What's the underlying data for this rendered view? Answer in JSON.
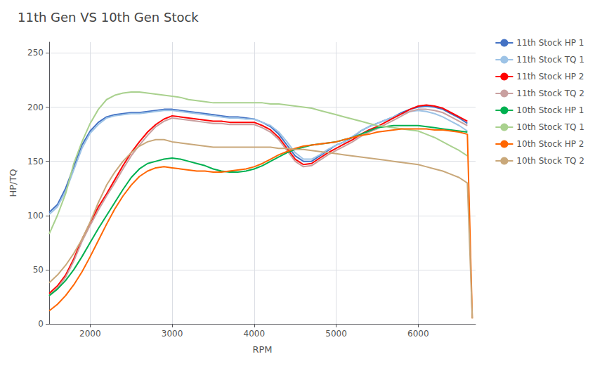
{
  "chart_data": {
    "type": "line",
    "title": "11th Gen VS 10th Gen Stock",
    "xlabel": "RPM",
    "ylabel": "HP/TQ",
    "xlim": [
      1500,
      6700
    ],
    "ylim": [
      0,
      260
    ],
    "xticks": [
      2000,
      3000,
      4000,
      5000,
      6000
    ],
    "yticks": [
      0,
      50,
      100,
      150,
      200,
      250
    ],
    "grid": true,
    "legend": "right",
    "series": [
      {
        "name": "11th Stock HP 1",
        "color": "#4472C4",
        "x": [
          1500,
          1600,
          1700,
          1800,
          1900,
          2000,
          2100,
          2200,
          2300,
          2400,
          2500,
          2600,
          2700,
          2800,
          2900,
          3000,
          3100,
          3200,
          3300,
          3400,
          3500,
          3600,
          3700,
          3800,
          3900,
          4000,
          4100,
          4200,
          4300,
          4400,
          4500,
          4600,
          4700,
          4800,
          4900,
          5000,
          5100,
          5200,
          5300,
          5400,
          5500,
          5600,
          5700,
          5800,
          5900,
          6000,
          6100,
          6200,
          6300,
          6400,
          6500,
          6600
        ],
        "values": [
          103,
          110,
          125,
          145,
          165,
          178,
          186,
          191,
          193,
          194,
          195,
          195,
          196,
          197,
          198,
          198,
          197,
          196,
          195,
          194,
          193,
          192,
          191,
          191,
          190,
          189,
          186,
          182,
          175,
          165,
          155,
          150,
          150,
          155,
          160,
          165,
          168,
          172,
          178,
          182,
          185,
          188,
          191,
          195,
          198,
          200,
          201,
          200,
          198,
          194,
          190,
          185
        ]
      },
      {
        "name": "11th Stock TQ 1",
        "color": "#9DC3E6",
        "x": [
          1500,
          1600,
          1700,
          1800,
          1900,
          2000,
          2100,
          2200,
          2300,
          2400,
          2500,
          2600,
          2700,
          2800,
          2900,
          3000,
          3100,
          3200,
          3300,
          3400,
          3500,
          3600,
          3700,
          3800,
          3900,
          4000,
          4100,
          4200,
          4300,
          4400,
          4500,
          4600,
          4700,
          4800,
          4900,
          5000,
          5100,
          5200,
          5300,
          5400,
          5500,
          5600,
          5700,
          5800,
          5900,
          6000,
          6100,
          6200,
          6300,
          6400,
          6500,
          6600
        ],
        "values": [
          101,
          108,
          122,
          142,
          162,
          176,
          184,
          190,
          192,
          193,
          194,
          194,
          195,
          196,
          197,
          197,
          196,
          195,
          194,
          193,
          192,
          191,
          190,
          190,
          189,
          189,
          186,
          183,
          177,
          168,
          158,
          152,
          152,
          156,
          161,
          165,
          168,
          173,
          178,
          182,
          185,
          188,
          191,
          194,
          196,
          197,
          196,
          194,
          191,
          187,
          183,
          178
        ]
      },
      {
        "name": "11th Stock HP 2",
        "color": "#FF0000",
        "x": [
          1500,
          1600,
          1700,
          1800,
          1900,
          2000,
          2100,
          2200,
          2300,
          2400,
          2500,
          2600,
          2700,
          2800,
          2900,
          3000,
          3100,
          3200,
          3300,
          3400,
          3500,
          3600,
          3700,
          3800,
          3900,
          4000,
          4100,
          4200,
          4300,
          4400,
          4500,
          4600,
          4700,
          4800,
          4900,
          5000,
          5100,
          5200,
          5300,
          5400,
          5500,
          5600,
          5700,
          5800,
          5900,
          6000,
          6100,
          6200,
          6300,
          6400,
          6500,
          6600
        ],
        "values": [
          28,
          35,
          45,
          60,
          78,
          93,
          108,
          120,
          133,
          146,
          158,
          168,
          177,
          184,
          189,
          192,
          191,
          190,
          189,
          188,
          187,
          187,
          186,
          186,
          186,
          186,
          183,
          179,
          172,
          162,
          152,
          147,
          148,
          153,
          158,
          162,
          166,
          170,
          175,
          179,
          182,
          186,
          190,
          194,
          198,
          201,
          202,
          201,
          199,
          195,
          191,
          187
        ]
      },
      {
        "name": "11th Stock TQ 2",
        "color": "#C9A0A0",
        "x": [
          1500,
          1600,
          1700,
          1800,
          1900,
          2000,
          2100,
          2200,
          2300,
          2400,
          2500,
          2600,
          2700,
          2800,
          2900,
          3000,
          3100,
          3200,
          3300,
          3400,
          3500,
          3600,
          3700,
          3800,
          3900,
          4000,
          4100,
          4200,
          4300,
          4400,
          4500,
          4600,
          4700,
          4800,
          4900,
          5000,
          5100,
          5200,
          5300,
          5400,
          5500,
          5600,
          5700,
          5800,
          5900,
          6000,
          6100,
          6200,
          6300,
          6400,
          6500,
          6600
        ],
        "values": [
          26,
          33,
          43,
          58,
          76,
          91,
          105,
          118,
          130,
          143,
          155,
          165,
          174,
          182,
          187,
          190,
          189,
          188,
          187,
          186,
          185,
          185,
          184,
          184,
          184,
          184,
          181,
          177,
          170,
          160,
          150,
          145,
          146,
          151,
          156,
          160,
          164,
          168,
          173,
          177,
          180,
          184,
          188,
          192,
          196,
          198,
          198,
          197,
          195,
          191,
          187,
          183
        ]
      },
      {
        "name": "10th Stock HP 1",
        "color": "#00B050",
        "x": [
          1500,
          1600,
          1700,
          1800,
          1900,
          2000,
          2100,
          2200,
          2300,
          2400,
          2500,
          2600,
          2700,
          2800,
          2900,
          3000,
          3100,
          3200,
          3300,
          3400,
          3500,
          3600,
          3700,
          3800,
          3900,
          4000,
          4100,
          4200,
          4300,
          4400,
          4500,
          4600,
          4700,
          4800,
          4900,
          5000,
          5100,
          5200,
          5300,
          5400,
          5500,
          5600,
          5700,
          5800,
          5900,
          6000,
          6100,
          6200,
          6300,
          6400,
          6500,
          6600
        ],
        "values": [
          26,
          32,
          40,
          50,
          62,
          75,
          88,
          100,
          112,
          124,
          135,
          143,
          148,
          150,
          152,
          153,
          152,
          150,
          148,
          146,
          143,
          141,
          140,
          140,
          141,
          143,
          146,
          150,
          154,
          158,
          161,
          163,
          165,
          166,
          167,
          168,
          170,
          172,
          175,
          178,
          181,
          182,
          183,
          183,
          183,
          183,
          182,
          181,
          180,
          179,
          178,
          177
        ]
      },
      {
        "name": "10th Stock TQ 1",
        "color": "#A9D18E",
        "x": [
          1500,
          1600,
          1700,
          1800,
          1900,
          2000,
          2100,
          2200,
          2300,
          2400,
          2500,
          2600,
          2700,
          2800,
          2900,
          3000,
          3100,
          3200,
          3300,
          3400,
          3500,
          3600,
          3700,
          3800,
          3900,
          4000,
          4100,
          4200,
          4300,
          4400,
          4500,
          4600,
          4700,
          4800,
          4900,
          5000,
          5100,
          5200,
          5300,
          5400,
          5500,
          5600,
          5700,
          5800,
          5900,
          6000,
          6100,
          6200,
          6300,
          6400,
          6500,
          6600
        ],
        "values": [
          83,
          100,
          120,
          148,
          168,
          185,
          198,
          207,
          211,
          213,
          214,
          214,
          213,
          212,
          211,
          210,
          209,
          207,
          206,
          205,
          204,
          204,
          204,
          204,
          204,
          204,
          204,
          203,
          203,
          202,
          201,
          200,
          199,
          197,
          195,
          193,
          191,
          189,
          187,
          185,
          183,
          182,
          181,
          180,
          179,
          178,
          175,
          172,
          168,
          164,
          160,
          155
        ]
      },
      {
        "name": "10th Stock HP 2",
        "color": "#FF6600",
        "x": [
          1500,
          1600,
          1700,
          1800,
          1900,
          2000,
          2100,
          2200,
          2300,
          2400,
          2500,
          2600,
          2700,
          2800,
          2900,
          3000,
          3100,
          3200,
          3300,
          3400,
          3500,
          3600,
          3700,
          3800,
          3900,
          4000,
          4100,
          4200,
          4300,
          4400,
          4500,
          4600,
          4700,
          4800,
          4900,
          5000,
          5100,
          5200,
          5300,
          5400,
          5500,
          5600,
          5700,
          5800,
          5900,
          6000,
          6100,
          6200,
          6300,
          6400,
          6500,
          6600,
          6660
        ],
        "values": [
          12,
          18,
          26,
          36,
          48,
          62,
          77,
          92,
          106,
          118,
          128,
          136,
          141,
          144,
          145,
          144,
          143,
          142,
          141,
          141,
          140,
          140,
          141,
          142,
          143,
          145,
          148,
          152,
          156,
          159,
          162,
          164,
          165,
          166,
          167,
          168,
          170,
          172,
          174,
          175,
          177,
          178,
          179,
          180,
          180,
          180,
          180,
          179,
          179,
          178,
          177,
          175,
          5
        ]
      },
      {
        "name": "10th Stock TQ 2",
        "color": "#C9A87A",
        "x": [
          1500,
          1600,
          1700,
          1800,
          1900,
          2000,
          2100,
          2200,
          2300,
          2400,
          2500,
          2600,
          2700,
          2800,
          2900,
          3000,
          3100,
          3200,
          3300,
          3400,
          3500,
          3600,
          3700,
          3800,
          3900,
          4000,
          4100,
          4200,
          4300,
          4400,
          4500,
          4600,
          4700,
          4800,
          4900,
          5000,
          5100,
          5200,
          5300,
          5400,
          5500,
          5600,
          5700,
          5800,
          5900,
          6000,
          6100,
          6200,
          6300,
          6400,
          6500,
          6600,
          6660
        ],
        "values": [
          38,
          45,
          54,
          65,
          78,
          94,
          112,
          128,
          140,
          150,
          158,
          164,
          168,
          170,
          170,
          168,
          167,
          166,
          165,
          164,
          163,
          163,
          163,
          163,
          163,
          163,
          163,
          163,
          162,
          162,
          161,
          161,
          160,
          159,
          158,
          157,
          156,
          155,
          154,
          153,
          152,
          151,
          150,
          149,
          148,
          147,
          145,
          143,
          141,
          138,
          135,
          130,
          5
        ]
      }
    ]
  }
}
